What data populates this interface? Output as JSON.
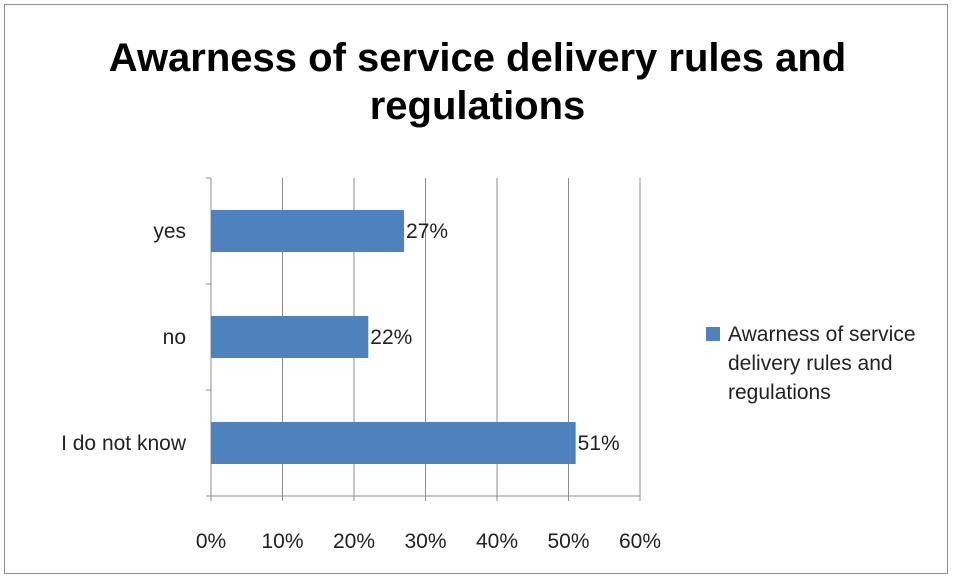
{
  "chart_data": {
    "type": "bar",
    "orientation": "horizontal",
    "title": "Awarness of service delivery rules and regulations",
    "categories": [
      "yes",
      "no",
      "I do not know"
    ],
    "series": [
      {
        "name": "Awarness of service delivery rules and regulations",
        "values": [
          27,
          22,
          51
        ],
        "labels": [
          "27%",
          "22%",
          "51%"
        ],
        "color": "#4f81bd"
      }
    ],
    "xlim": [
      0,
      60
    ],
    "x_ticks": [
      0,
      10,
      20,
      30,
      40,
      50,
      60
    ],
    "x_tick_labels": [
      "0%",
      "10%",
      "20%",
      "30%",
      "40%",
      "50%",
      "60%"
    ],
    "grid": true,
    "legend_position": "right"
  }
}
